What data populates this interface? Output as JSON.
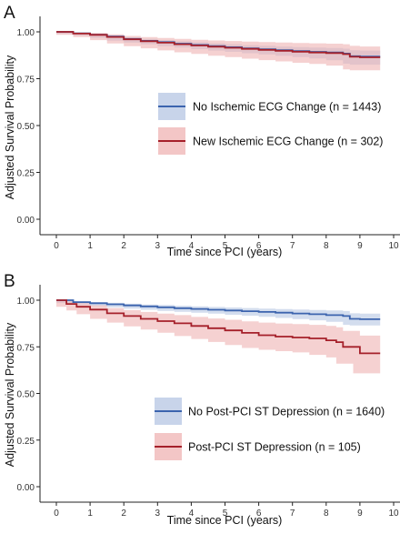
{
  "chart_data": [
    {
      "panel_label": "A",
      "type": "line",
      "xlabel": "Time since PCI (years)",
      "ylabel": "Adjusted Survival Probability",
      "xlim": [
        0,
        10
      ],
      "ylim": [
        0,
        1
      ],
      "x_ticks": [
        "0",
        "1",
        "2",
        "3",
        "4",
        "5",
        "6",
        "7",
        "8",
        "9",
        "10"
      ],
      "y_ticks": [
        "0.00",
        "0.25",
        "0.50",
        "0.75",
        "1.00"
      ],
      "grid": false,
      "legend_position": "middle-right",
      "series": [
        {
          "name": "No Ischemic ECG Change (n = 1443)",
          "color": "#3c64ae",
          "band_color": "#b5c6e3",
          "points": [
            [
              0,
              1.0
            ],
            [
              0.5,
              0.992
            ],
            [
              1,
              0.985
            ],
            [
              1.5,
              0.975
            ],
            [
              2,
              0.962
            ],
            [
              2.5,
              0.952
            ],
            [
              3,
              0.945
            ],
            [
              3.5,
              0.937
            ],
            [
              4,
              0.93
            ],
            [
              4.5,
              0.924
            ],
            [
              5,
              0.918
            ],
            [
              5.5,
              0.912
            ],
            [
              6,
              0.907
            ],
            [
              6.5,
              0.902
            ],
            [
              7,
              0.897
            ],
            [
              7.5,
              0.893
            ],
            [
              8,
              0.89
            ],
            [
              8.5,
              0.884
            ],
            [
              8.7,
              0.87
            ],
            [
              9,
              0.868
            ],
            [
              9.6,
              0.868
            ]
          ],
          "lower": [
            [
              0,
              1.0
            ],
            [
              0.5,
              0.989
            ],
            [
              1,
              0.98
            ],
            [
              1.5,
              0.968
            ],
            [
              2,
              0.953
            ],
            [
              2.5,
              0.942
            ],
            [
              3,
              0.933
            ],
            [
              3.5,
              0.924
            ],
            [
              4,
              0.916
            ],
            [
              4.5,
              0.908
            ],
            [
              5,
              0.9
            ],
            [
              5.5,
              0.893
            ],
            [
              6,
              0.886
            ],
            [
              6.5,
              0.879
            ],
            [
              7,
              0.872
            ],
            [
              7.5,
              0.865
            ],
            [
              8,
              0.858
            ],
            [
              8.5,
              0.848
            ],
            [
              8.7,
              0.83
            ],
            [
              9,
              0.825
            ],
            [
              9.6,
              0.825
            ]
          ],
          "upper": [
            [
              0,
              1.0
            ],
            [
              0.5,
              0.995
            ],
            [
              1,
              0.99
            ],
            [
              1.5,
              0.982
            ],
            [
              2,
              0.97
            ],
            [
              2.5,
              0.962
            ],
            [
              3,
              0.956
            ],
            [
              3.5,
              0.95
            ],
            [
              4,
              0.944
            ],
            [
              4.5,
              0.939
            ],
            [
              5,
              0.934
            ],
            [
              5.5,
              0.929
            ],
            [
              6,
              0.926
            ],
            [
              6.5,
              0.922
            ],
            [
              7,
              0.919
            ],
            [
              7.5,
              0.916
            ],
            [
              8,
              0.914
            ],
            [
              8.5,
              0.91
            ],
            [
              8.7,
              0.902
            ],
            [
              9,
              0.9
            ],
            [
              9.6,
              0.9
            ]
          ]
        },
        {
          "name": "New Ischemic ECG Change (n = 302)",
          "color": "#a5202a",
          "band_color": "#efb3b3",
          "points": [
            [
              0,
              1.0
            ],
            [
              0.5,
              0.991
            ],
            [
              1,
              0.984
            ],
            [
              1.5,
              0.973
            ],
            [
              2,
              0.96
            ],
            [
              2.5,
              0.95
            ],
            [
              3,
              0.942
            ],
            [
              3.5,
              0.934
            ],
            [
              4,
              0.927
            ],
            [
              4.5,
              0.921
            ],
            [
              5,
              0.915
            ],
            [
              5.5,
              0.909
            ],
            [
              6,
              0.904
            ],
            [
              6.5,
              0.899
            ],
            [
              7,
              0.894
            ],
            [
              7.5,
              0.89
            ],
            [
              8,
              0.887
            ],
            [
              8.5,
              0.881
            ],
            [
              8.7,
              0.867
            ],
            [
              9,
              0.864
            ],
            [
              9.6,
              0.864
            ]
          ],
          "lower": [
            [
              0,
              1.0
            ],
            [
              0.5,
              0.984
            ],
            [
              1,
              0.972
            ],
            [
              1.5,
              0.956
            ],
            [
              2,
              0.938
            ],
            [
              2.5,
              0.924
            ],
            [
              3,
              0.912
            ],
            [
              3.5,
              0.901
            ],
            [
              4,
              0.891
            ],
            [
              4.5,
              0.882
            ],
            [
              5,
              0.873
            ],
            [
              5.5,
              0.865
            ],
            [
              6,
              0.857
            ],
            [
              6.5,
              0.849
            ],
            [
              7,
              0.842
            ],
            [
              7.5,
              0.835
            ],
            [
              8,
              0.829
            ],
            [
              8.5,
              0.82
            ],
            [
              8.7,
              0.8
            ],
            [
              9,
              0.795
            ],
            [
              9.6,
              0.795
            ]
          ],
          "upper": [
            [
              0,
              1.0
            ],
            [
              0.5,
              0.997
            ],
            [
              1,
              0.994
            ],
            [
              1.5,
              0.987
            ],
            [
              2,
              0.978
            ],
            [
              2.5,
              0.972
            ],
            [
              3,
              0.967
            ],
            [
              3.5,
              0.962
            ],
            [
              4,
              0.958
            ],
            [
              4.5,
              0.954
            ],
            [
              5,
              0.951
            ],
            [
              5.5,
              0.948
            ],
            [
              6,
              0.945
            ],
            [
              6.5,
              0.943
            ],
            [
              7,
              0.941
            ],
            [
              7.5,
              0.939
            ],
            [
              8,
              0.937
            ],
            [
              8.5,
              0.934
            ],
            [
              8.7,
              0.925
            ],
            [
              9,
              0.922
            ],
            [
              9.6,
              0.922
            ]
          ]
        }
      ]
    },
    {
      "panel_label": "B",
      "type": "line",
      "xlabel": "Time since PCI (years)",
      "ylabel": "Adjusted Survival Probability",
      "xlim": [
        0,
        10
      ],
      "ylim": [
        0,
        1
      ],
      "x_ticks": [
        "0",
        "1",
        "2",
        "3",
        "4",
        "5",
        "6",
        "7",
        "8",
        "9",
        "10"
      ],
      "y_ticks": [
        "0.00",
        "0.25",
        "0.50",
        "0.75",
        "1.00"
      ],
      "grid": false,
      "legend_position": "bottom-right",
      "series": [
        {
          "name": "No Post-PCI ST Depression (n = 1640)",
          "color": "#3c64ae",
          "band_color": "#b5c6e3",
          "points": [
            [
              0,
              1.0
            ],
            [
              0.5,
              0.99
            ],
            [
              1,
              0.984
            ],
            [
              1.5,
              0.978
            ],
            [
              2,
              0.972
            ],
            [
              2.5,
              0.967
            ],
            [
              3,
              0.962
            ],
            [
              3.5,
              0.957
            ],
            [
              4,
              0.953
            ],
            [
              4.5,
              0.949
            ],
            [
              5,
              0.945
            ],
            [
              5.5,
              0.941
            ],
            [
              6,
              0.937
            ],
            [
              6.5,
              0.933
            ],
            [
              7,
              0.929
            ],
            [
              7.5,
              0.925
            ],
            [
              8,
              0.92
            ],
            [
              8.5,
              0.915
            ],
            [
              8.7,
              0.9
            ],
            [
              9,
              0.898
            ],
            [
              9.6,
              0.898
            ]
          ],
          "lower": [
            [
              0,
              1.0
            ],
            [
              0.5,
              0.985
            ],
            [
              1,
              0.977
            ],
            [
              1.5,
              0.969
            ],
            [
              2,
              0.962
            ],
            [
              2.5,
              0.955
            ],
            [
              3,
              0.949
            ],
            [
              3.5,
              0.943
            ],
            [
              4,
              0.938
            ],
            [
              4.5,
              0.933
            ],
            [
              5,
              0.928
            ],
            [
              5.5,
              0.922
            ],
            [
              6,
              0.917
            ],
            [
              6.5,
              0.911
            ],
            [
              7,
              0.905
            ],
            [
              7.5,
              0.899
            ],
            [
              8,
              0.892
            ],
            [
              8.5,
              0.884
            ],
            [
              8.7,
              0.868
            ],
            [
              9,
              0.865
            ],
            [
              9.6,
              0.865
            ]
          ],
          "upper": [
            [
              0,
              1.0
            ],
            [
              0.5,
              0.994
            ],
            [
              1,
              0.99
            ],
            [
              1.5,
              0.986
            ],
            [
              2,
              0.981
            ],
            [
              2.5,
              0.977
            ],
            [
              3,
              0.974
            ],
            [
              3.5,
              0.97
            ],
            [
              4,
              0.967
            ],
            [
              4.5,
              0.964
            ],
            [
              5,
              0.961
            ],
            [
              5.5,
              0.958
            ],
            [
              6,
              0.955
            ],
            [
              6.5,
              0.952
            ],
            [
              7,
              0.95
            ],
            [
              7.5,
              0.948
            ],
            [
              8,
              0.945
            ],
            [
              8.5,
              0.942
            ],
            [
              8.7,
              0.93
            ],
            [
              9,
              0.928
            ],
            [
              9.6,
              0.928
            ]
          ]
        },
        {
          "name": "Post-PCI ST Depression (n = 105)",
          "color": "#a5202a",
          "band_color": "#efb3b3",
          "points": [
            [
              0,
              1.0
            ],
            [
              0.3,
              0.98
            ],
            [
              0.6,
              0.965
            ],
            [
              1,
              0.95
            ],
            [
              1.5,
              0.93
            ],
            [
              2,
              0.915
            ],
            [
              2.5,
              0.9
            ],
            [
              3,
              0.888
            ],
            [
              3.5,
              0.876
            ],
            [
              4,
              0.862
            ],
            [
              4.5,
              0.85
            ],
            [
              5,
              0.838
            ],
            [
              5.5,
              0.825
            ],
            [
              6,
              0.812
            ],
            [
              6.5,
              0.805
            ],
            [
              7,
              0.8
            ],
            [
              7.5,
              0.795
            ],
            [
              8,
              0.785
            ],
            [
              8.3,
              0.775
            ],
            [
              8.5,
              0.75
            ],
            [
              8.8,
              0.75
            ],
            [
              9,
              0.715
            ],
            [
              9.6,
              0.715
            ]
          ],
          "lower": [
            [
              0,
              1.0
            ],
            [
              0.3,
              0.965
            ],
            [
              0.6,
              0.945
            ],
            [
              1,
              0.925
            ],
            [
              1.5,
              0.9
            ],
            [
              2,
              0.88
            ],
            [
              2.5,
              0.86
            ],
            [
              3,
              0.843
            ],
            [
              3.5,
              0.826
            ],
            [
              4,
              0.808
            ],
            [
              4.5,
              0.792
            ],
            [
              5,
              0.776
            ],
            [
              5.5,
              0.76
            ],
            [
              6,
              0.744
            ],
            [
              6.5,
              0.734
            ],
            [
              7,
              0.727
            ],
            [
              7.5,
              0.72
            ],
            [
              8,
              0.707
            ],
            [
              8.3,
              0.693
            ],
            [
              8.5,
              0.66
            ],
            [
              8.8,
              0.66
            ],
            [
              9,
              0.608
            ],
            [
              9.6,
              0.608
            ]
          ],
          "upper": [
            [
              0,
              1.0
            ],
            [
              0.3,
              0.993
            ],
            [
              0.6,
              0.984
            ],
            [
              1,
              0.973
            ],
            [
              1.5,
              0.958
            ],
            [
              2,
              0.947
            ],
            [
              2.5,
              0.937
            ],
            [
              3,
              0.928
            ],
            [
              3.5,
              0.92
            ],
            [
              4,
              0.91
            ],
            [
              4.5,
              0.902
            ],
            [
              5,
              0.895
            ],
            [
              5.5,
              0.887
            ],
            [
              6,
              0.88
            ],
            [
              6.5,
              0.875
            ],
            [
              7,
              0.872
            ],
            [
              7.5,
              0.868
            ],
            [
              8,
              0.862
            ],
            [
              8.3,
              0.855
            ],
            [
              8.5,
              0.835
            ],
            [
              8.8,
              0.835
            ],
            [
              9,
              0.81
            ],
            [
              9.6,
              0.81
            ]
          ]
        }
      ]
    }
  ]
}
